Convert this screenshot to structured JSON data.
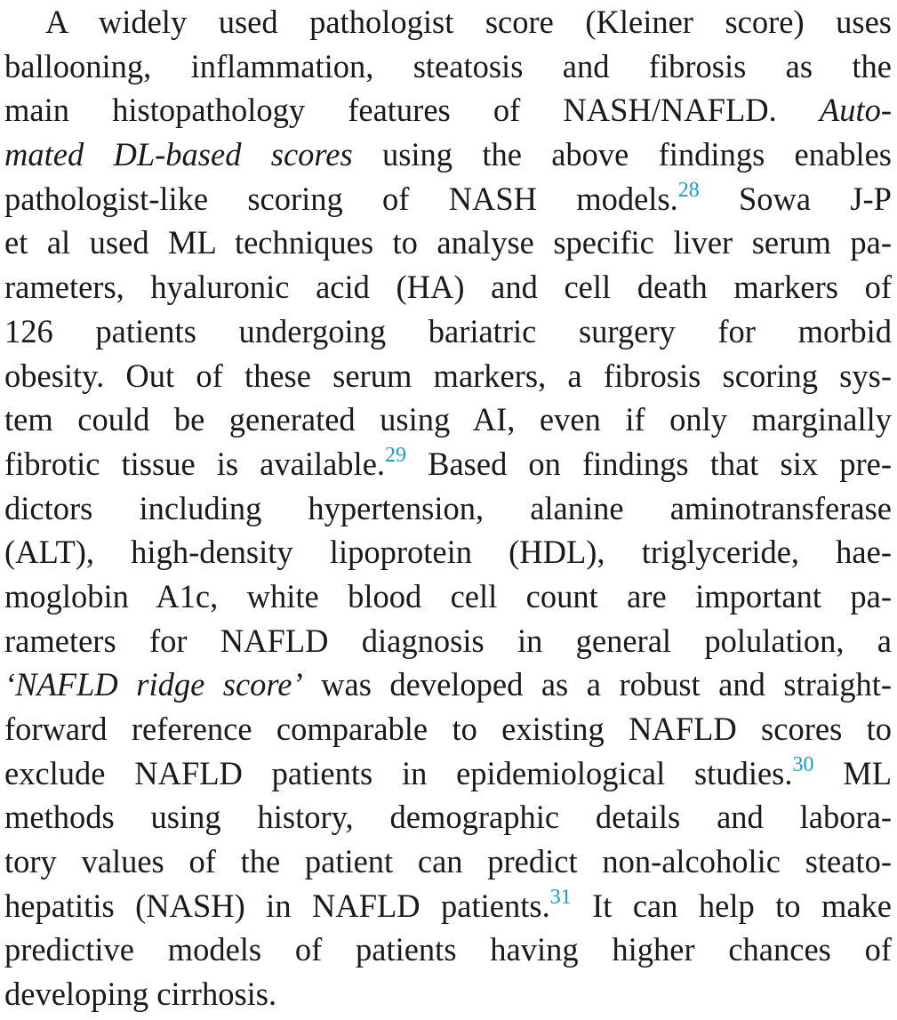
{
  "paragraph": {
    "lines": [
      [
        {
          "t": "A widely used pathologist score (Kleiner score) uses"
        }
      ],
      [
        {
          "t": "ballooning, inflammation, steatosis and fibrosis as the"
        }
      ],
      [
        {
          "t": "main histopathology features of NASH/NAFLD. "
        },
        {
          "t": "Auto-",
          "i": true
        }
      ],
      [
        {
          "t": "mated DL-based scores",
          "i": true
        },
        {
          "t": " using the above findings enables"
        }
      ],
      [
        {
          "t": "pathologist-like scoring of NASH models."
        },
        {
          "t": "28",
          "r": true
        },
        {
          "t": " Sowa J-P"
        }
      ],
      [
        {
          "t": "et al used ML techniques to analyse specific liver serum pa-"
        }
      ],
      [
        {
          "t": "rameters, hyaluronic acid (HA) and cell death markers of"
        }
      ],
      [
        {
          "t": "126 patients undergoing bariatric surgery for morbid"
        }
      ],
      [
        {
          "t": "obesity. Out of these serum markers, a fibrosis scoring sys-"
        }
      ],
      [
        {
          "t": "tem could be generated using AI, even if only marginally"
        }
      ],
      [
        {
          "t": "fibrotic tissue is available."
        },
        {
          "t": "29",
          "r": true
        },
        {
          "t": " Based on findings that six pre-"
        }
      ],
      [
        {
          "t": "dictors including hypertension, alanine aminotransferase"
        }
      ],
      [
        {
          "t": "(ALT), high-density lipoprotein (HDL), triglyceride, hae-"
        }
      ],
      [
        {
          "t": "moglobin A1c, white blood cell count are important pa-"
        }
      ],
      [
        {
          "t": "rameters for NAFLD diagnosis in general polulation, a"
        }
      ],
      [
        {
          "t": "‘NAFLD ridge score’",
          "i": true
        },
        {
          "t": " was developed as a robust and straight-"
        }
      ],
      [
        {
          "t": "forward reference comparable to existing NAFLD scores to"
        }
      ],
      [
        {
          "t": "exclude NAFLD patients in epidemiological studies."
        },
        {
          "t": "30",
          "r": true
        },
        {
          "t": " ML"
        }
      ],
      [
        {
          "t": "methods using history, demographic details and labora-"
        }
      ],
      [
        {
          "t": "tory values of the patient can predict non-alcoholic steato-"
        }
      ],
      [
        {
          "t": "hepatitis (NASH) in NAFLD patients."
        },
        {
          "t": "31",
          "r": true
        },
        {
          "t": " It can help to make"
        }
      ],
      [
        {
          "t": "predictive models of patients having higher chances of"
        }
      ],
      [
        {
          "t": "developing cirrhosis."
        }
      ]
    ]
  },
  "colors": {
    "text": "#1a1a1a",
    "reference_link": "#1a9bc9"
  }
}
